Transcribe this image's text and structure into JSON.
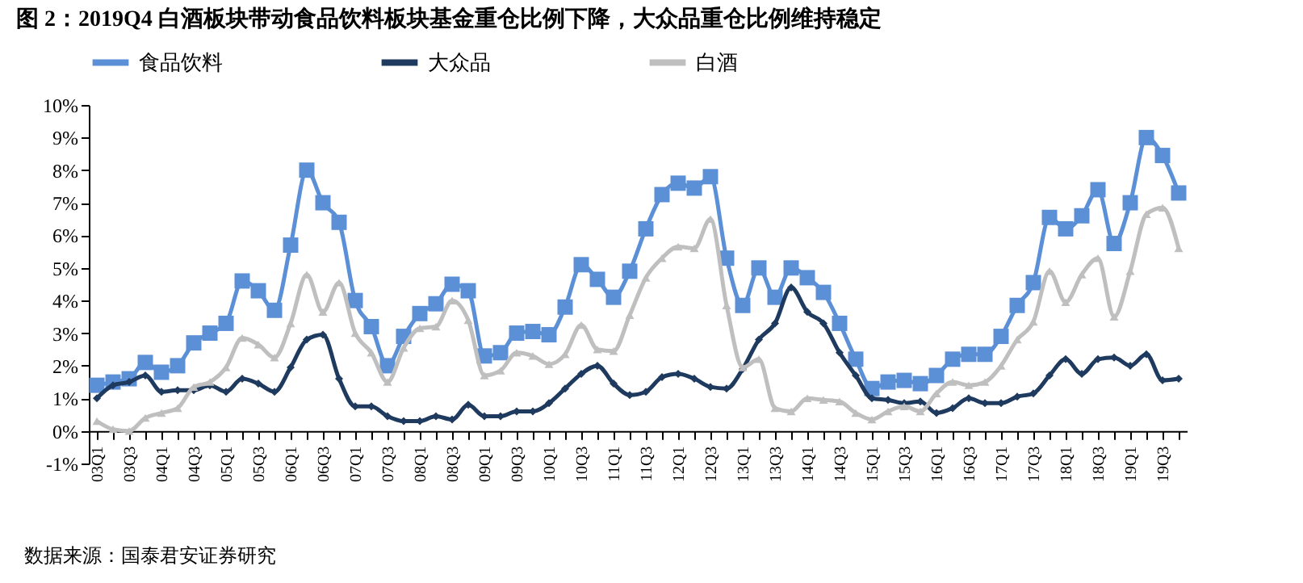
{
  "chart_data": {
    "type": "line",
    "title": "图 2：2019Q4 白酒板块带动食品饮料板块基金重仓比例下降，大众品重仓比例维持稳定",
    "categories": [
      "03Q1",
      null,
      "03Q3",
      null,
      "04Q1",
      null,
      "04Q3",
      null,
      "05Q1",
      null,
      "05Q3",
      null,
      "06Q1",
      null,
      "06Q3",
      null,
      "07Q1",
      null,
      "07Q3",
      null,
      "08Q1",
      null,
      "08Q3",
      null,
      "09Q1",
      null,
      "09Q3",
      null,
      "10Q1",
      null,
      "10Q3",
      null,
      "11Q1",
      null,
      "11Q3",
      null,
      "12Q1",
      null,
      "12Q3",
      null,
      "13Q1",
      null,
      "13Q3",
      null,
      "14Q1",
      null,
      "14Q3",
      null,
      "15Q1",
      null,
      "15Q3",
      null,
      "16Q1",
      null,
      "16Q3",
      null,
      "17Q1",
      null,
      "17Q3",
      null,
      "18Q1",
      null,
      "18Q3",
      null,
      "19Q1",
      null,
      "19Q3",
      null
    ],
    "series": [
      {
        "name": "食品饮料",
        "color": "#5b8fd6",
        "marker": "square",
        "values": [
          1.4,
          1.5,
          1.6,
          2.1,
          1.8,
          2.0,
          2.7,
          3.0,
          3.3,
          4.6,
          4.3,
          3.7,
          5.7,
          8.0,
          7.0,
          6.4,
          4.0,
          3.2,
          2.0,
          2.9,
          3.6,
          3.9,
          4.5,
          4.3,
          2.3,
          2.4,
          3.0,
          3.05,
          2.95,
          3.8,
          5.1,
          4.65,
          4.1,
          4.9,
          6.2,
          7.25,
          7.6,
          7.45,
          7.8,
          5.3,
          3.85,
          5.0,
          4.1,
          5.0,
          4.7,
          4.25,
          3.3,
          2.2,
          1.3,
          1.5,
          1.55,
          1.45,
          1.7,
          2.2,
          2.35,
          2.35,
          2.9,
          3.85,
          4.55,
          6.55,
          6.2,
          6.6,
          7.4,
          5.75,
          7.0,
          9.0,
          8.45,
          7.3
        ]
      },
      {
        "name": "大众品",
        "color": "#1f3a5f",
        "marker": "diamond",
        "values": [
          1.0,
          1.4,
          1.5,
          1.7,
          1.2,
          1.25,
          1.25,
          1.4,
          1.2,
          1.6,
          1.45,
          1.2,
          1.95,
          2.8,
          2.95,
          1.6,
          0.75,
          0.75,
          0.45,
          0.3,
          0.3,
          0.45,
          0.35,
          0.8,
          0.45,
          0.45,
          0.6,
          0.6,
          0.85,
          1.3,
          1.75,
          2.0,
          1.45,
          1.1,
          1.2,
          1.65,
          1.75,
          1.6,
          1.35,
          1.3,
          1.9,
          2.8,
          3.3,
          4.4,
          3.65,
          3.3,
          2.4,
          1.7,
          1.0,
          0.95,
          0.85,
          0.9,
          0.55,
          0.7,
          1.0,
          0.85,
          0.85,
          1.05,
          1.15,
          1.7,
          2.2,
          1.75,
          2.2,
          2.25,
          2.0,
          2.35,
          1.55,
          1.6
        ]
      },
      {
        "name": "白酒",
        "color": "#bfbfbf",
        "marker": "triangle",
        "values": [
          0.3,
          0.05,
          0.0,
          0.4,
          0.55,
          0.7,
          1.35,
          1.5,
          1.95,
          2.85,
          2.65,
          2.25,
          3.3,
          4.8,
          3.65,
          4.55,
          3.0,
          2.4,
          1.5,
          2.55,
          3.15,
          3.2,
          4.0,
          3.4,
          1.7,
          1.85,
          2.4,
          2.3,
          2.05,
          2.35,
          3.25,
          2.5,
          2.45,
          3.55,
          4.7,
          5.3,
          5.65,
          5.6,
          6.5,
          3.85,
          1.95,
          2.2,
          0.7,
          0.6,
          1.0,
          0.95,
          0.9,
          0.55,
          0.35,
          0.6,
          0.75,
          0.6,
          1.15,
          1.5,
          1.4,
          1.5,
          2.0,
          2.8,
          3.35,
          4.9,
          3.95,
          4.8,
          5.3,
          3.5,
          4.9,
          6.65,
          6.85,
          5.6
        ]
      }
    ],
    "ylim": [
      -1,
      10
    ],
    "yticks": [
      {
        "value": -1,
        "label": "-1%"
      },
      {
        "value": 0,
        "label": "0%"
      },
      {
        "value": 1,
        "label": "1%"
      },
      {
        "value": 2,
        "label": "2%"
      },
      {
        "value": 3,
        "label": "3%"
      },
      {
        "value": 4,
        "label": "4%"
      },
      {
        "value": 5,
        "label": "5%"
      },
      {
        "value": 6,
        "label": "6%"
      },
      {
        "value": 7,
        "label": "7%"
      },
      {
        "value": 8,
        "label": "8%"
      },
      {
        "value": 9,
        "label": "9%"
      },
      {
        "value": 10,
        "label": "10%"
      }
    ],
    "grid": false,
    "legend": "top",
    "line_style": "solid",
    "annotations": [
      "数据来源：国泰君安证券研究"
    ]
  }
}
